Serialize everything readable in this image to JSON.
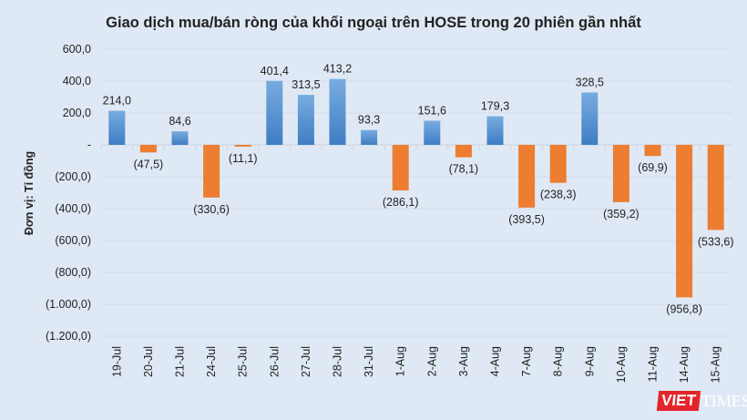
{
  "chart_data": {
    "type": "bar",
    "title": "Giao dịch mua/bán ròng của khối ngoại trên HOSE trong 20 phiên gần nhất",
    "xlabel": "",
    "ylabel": "Đơn vị: Tỉ đồng",
    "ylim": [
      -1200,
      600
    ],
    "yticks": [
      600,
      400,
      200,
      0,
      -200,
      -400,
      -600,
      -800,
      -1000,
      -1200
    ],
    "ytick_labels": [
      "600,0",
      "400,0",
      "200,0",
      "-",
      "(200,0)",
      "(400,0)",
      "(600,0)",
      "(800,0)",
      "(1.000,0)",
      "(1.200,0)"
    ],
    "grid": true,
    "categories": [
      "19-Jul",
      "20-Jul",
      "21-Jul",
      "24-Jul",
      "25-Jul",
      "26-Jul",
      "27-Jul",
      "28-Jul",
      "31-Jul",
      "1-Aug",
      "2-Aug",
      "3-Aug",
      "4-Aug",
      "7-Aug",
      "8-Aug",
      "9-Aug",
      "10-Aug",
      "11-Aug",
      "14-Aug",
      "15-Aug"
    ],
    "values": [
      214.0,
      -47.5,
      84.6,
      -330.6,
      -11.1,
      401.4,
      313.5,
      413.2,
      93.3,
      -286.1,
      151.6,
      -78.1,
      179.3,
      -393.5,
      -238.3,
      328.5,
      -359.2,
      -69.9,
      -956.8,
      -533.6
    ],
    "data_labels": [
      "214,0",
      "(47,5)",
      "84,6",
      "(330,6)",
      "(11,1)",
      "401,4",
      "313,5",
      "413,2",
      "93,3",
      "(286,1)",
      "151,6",
      "(78,1)",
      "179,3",
      "(393,5)",
      "(238,3)",
      "328,5",
      "(359,2)",
      "(69,9)",
      "(956,8)",
      "(533,6)"
    ],
    "colors": {
      "positive": "#4a8ad0",
      "negative": "#ed7d31",
      "background": "#dfe9f5"
    }
  },
  "watermark": {
    "brand_left": "VIET",
    "brand_right": "TIMES"
  }
}
